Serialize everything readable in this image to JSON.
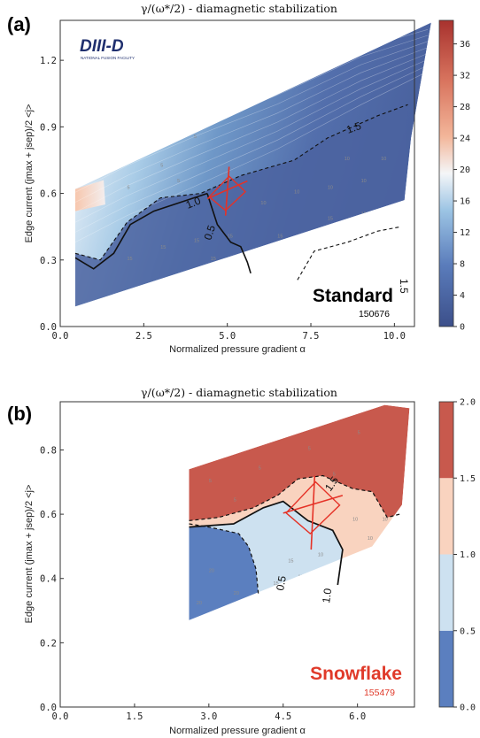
{
  "figure": {
    "panels": [
      {
        "id": "a",
        "label": "(a)",
        "title": "γ/(ω*/2) - diamagnetic stabilization",
        "xlabel": "Normalized pressure gradient α",
        "ylabel": "Edge current (jmax + jsep)/2 <j>",
        "scenario_label": "Standard",
        "scenario_color": "#000000",
        "shot_number": "150676",
        "shot_color": "#000000",
        "logo_text": "DIII-D",
        "logo_subtitle": "NATIONAL FUSION FACILITY",
        "x_ticks": [
          "0.0",
          "2.5",
          "5.0",
          "7.5",
          "10.0"
        ],
        "y_ticks": [
          "0.0",
          "0.3",
          "0.6",
          "0.9",
          "1.2"
        ],
        "colorbar_ticks": [
          "0",
          "4",
          "8",
          "12",
          "16",
          "20",
          "24",
          "28",
          "32",
          "36"
        ],
        "contour_labels": [
          "1.0",
          "0.5",
          "1.5",
          "1.5"
        ],
        "field_samples": [
          "5",
          "10",
          "15"
        ]
      },
      {
        "id": "b",
        "label": "(b)",
        "title": "γ/(ω*/2) - diamagnetic stabilization",
        "xlabel": "Normalized pressure gradient α",
        "ylabel": "Edge current (jmax + jsep)/2 <j>",
        "scenario_label": "Snowflake",
        "scenario_color": "#e03a2a",
        "shot_number": "155479",
        "shot_color": "#e03a2a",
        "x_ticks": [
          "0.0",
          "1.5",
          "3.0",
          "4.5",
          "6.0"
        ],
        "y_ticks": [
          "0.0",
          "0.2",
          "0.4",
          "0.6",
          "0.8"
        ],
        "colorbar_ticks": [
          "0.0",
          "0.5",
          "1.0",
          "1.5",
          "2.0"
        ],
        "contour_labels": [
          "0.5",
          "1.0",
          "1.5"
        ],
        "field_samples": [
          "5",
          "10",
          "15",
          "20"
        ]
      }
    ]
  },
  "chart_data": [
    {
      "type": "heatmap",
      "panel": "a",
      "title": "γ/(ω*/2) - diamagnetic stabilization",
      "xlabel": "Normalized pressure gradient α",
      "ylabel": "Edge current (jmax + jsep)/2 <j>",
      "xlim": [
        0,
        10.6
      ],
      "ylim": [
        0,
        1.38
      ],
      "x_ticks": [
        0.0,
        2.5,
        5.0,
        7.5,
        10.0
      ],
      "y_ticks": [
        0.0,
        0.3,
        0.6,
        0.9,
        1.2
      ],
      "colorbar": {
        "min": 0,
        "max": 39,
        "ticks": [
          0,
          4,
          8,
          12,
          16,
          20,
          24,
          28,
          32,
          36
        ],
        "colormap": "diverging blue-white-red",
        "position": "right"
      },
      "domain_polygon": [
        [
          0.45,
          0.09
        ],
        [
          10.3,
          0.57
        ],
        [
          10.5,
          0.85
        ],
        [
          11.1,
          1.37
        ],
        [
          0.45,
          0.62
        ]
      ],
      "contours": [
        {
          "level": 1.0,
          "style": "solid",
          "points": [
            [
              0.45,
              0.31
            ],
            [
              1.0,
              0.26
            ],
            [
              1.6,
              0.33
            ],
            [
              2.1,
              0.46
            ],
            [
              2.8,
              0.52
            ],
            [
              3.8,
              0.57
            ],
            [
              4.4,
              0.6
            ]
          ]
        },
        {
          "level": 1.5,
          "style": "dashed",
          "points": [
            [
              0.45,
              0.33
            ],
            [
              1.2,
              0.3
            ],
            [
              2.0,
              0.47
            ],
            [
              3.0,
              0.58
            ],
            [
              4.2,
              0.6
            ],
            [
              5.4,
              0.68
            ],
            [
              7.0,
              0.75
            ],
            [
              8.0,
              0.85
            ],
            [
              9.5,
              0.95
            ],
            [
              10.4,
              1.0
            ]
          ]
        },
        {
          "level": 0.5,
          "style": "solid",
          "points": [
            [
              4.4,
              0.6
            ],
            [
              4.7,
              0.46
            ],
            [
              5.1,
              0.38
            ],
            [
              5.4,
              0.36
            ],
            [
              5.6,
              0.29
            ],
            [
              5.7,
              0.24
            ]
          ]
        },
        {
          "level": 1.5,
          "style": "dashed",
          "points": [
            [
              7.1,
              0.21
            ],
            [
              7.6,
              0.34
            ],
            [
              8.6,
              0.38
            ],
            [
              9.5,
              0.43
            ],
            [
              10.2,
              0.45
            ]
          ]
        }
      ],
      "experimental_point": {
        "x": 5.0,
        "y": 0.6,
        "x_err": [
          4.4,
          5.6
        ],
        "y_err": [
          0.5,
          0.72
        ]
      },
      "field_values": [
        {
          "x": 1.0,
          "y": 0.8,
          "v": 5
        },
        {
          "x": 1.5,
          "y": 0.7,
          "v": 5
        },
        {
          "x": 2.0,
          "y": 0.62,
          "v": 5
        },
        {
          "x": 3.0,
          "y": 0.72,
          "v": 5
        },
        {
          "x": 4.0,
          "y": 0.85,
          "v": 5
        },
        {
          "x": 3.5,
          "y": 0.65,
          "v": 5
        },
        {
          "x": 6.0,
          "y": 0.55,
          "v": 10
        },
        {
          "x": 7.0,
          "y": 0.6,
          "v": 10
        },
        {
          "x": 8.0,
          "y": 0.62,
          "v": 10
        },
        {
          "x": 9.0,
          "y": 0.65,
          "v": 10
        },
        {
          "x": 9.6,
          "y": 0.75,
          "v": 10
        },
        {
          "x": 8.5,
          "y": 0.75,
          "v": 10
        },
        {
          "x": 3.0,
          "y": 0.35,
          "v": 15
        },
        {
          "x": 4.0,
          "y": 0.38,
          "v": 15
        },
        {
          "x": 5.0,
          "y": 0.4,
          "v": 15
        },
        {
          "x": 6.5,
          "y": 0.4,
          "v": 15
        },
        {
          "x": 8.0,
          "y": 0.48,
          "v": 15
        },
        {
          "x": 9.0,
          "y": 0.5,
          "v": 15
        },
        {
          "x": 2.0,
          "y": 0.3,
          "v": 15
        },
        {
          "x": 6.0,
          "y": 0.28,
          "v": 15
        },
        {
          "x": 4.5,
          "y": 0.3,
          "v": 15
        }
      ]
    },
    {
      "type": "heatmap",
      "panel": "b",
      "title": "γ/(ω*/2) - diamagnetic stabilization",
      "xlabel": "Normalized pressure gradient α",
      "ylabel": "Edge current (jmax + jsep)/2 <j>",
      "xlim": [
        0,
        7.15
      ],
      "ylim": [
        0,
        0.95
      ],
      "x_ticks": [
        0.0,
        1.5,
        3.0,
        4.5,
        6.0
      ],
      "y_ticks": [
        0.0,
        0.2,
        0.4,
        0.6,
        0.8
      ],
      "colorbar": {
        "min": 0.0,
        "max": 2.0,
        "ticks": [
          0.0,
          0.5,
          1.0,
          1.5,
          2.0
        ],
        "levels": [
          [
            0.0,
            0.5,
            "#5b7fbf"
          ],
          [
            0.5,
            1.0,
            "#cde1f0"
          ],
          [
            1.0,
            1.5,
            "#f9d3bf"
          ],
          [
            1.5,
            2.0,
            "#c8594d"
          ]
        ],
        "position": "right"
      },
      "domain_polygon": [
        [
          2.6,
          0.27
        ],
        [
          6.3,
          0.5
        ],
        [
          6.9,
          0.63
        ],
        [
          7.05,
          0.93
        ],
        [
          6.55,
          0.94
        ],
        [
          2.6,
          0.74
        ]
      ],
      "contours": [
        {
          "level": 0.5,
          "style": "dashed",
          "points": [
            [
              2.6,
              0.57
            ],
            [
              3.0,
              0.56
            ],
            [
              3.6,
              0.54
            ],
            [
              3.8,
              0.5
            ],
            [
              3.95,
              0.43
            ],
            [
              4.0,
              0.35
            ]
          ]
        },
        {
          "level": 1.0,
          "style": "solid",
          "points": [
            [
              2.6,
              0.56
            ],
            [
              3.5,
              0.57
            ],
            [
              4.1,
              0.62
            ],
            [
              4.5,
              0.64
            ],
            [
              5.0,
              0.58
            ],
            [
              5.5,
              0.55
            ],
            [
              5.7,
              0.49
            ],
            [
              5.6,
              0.38
            ]
          ]
        },
        {
          "level": 1.5,
          "style": "dashed",
          "points": [
            [
              2.6,
              0.58
            ],
            [
              3.2,
              0.59
            ],
            [
              3.9,
              0.62
            ],
            [
              4.4,
              0.66
            ],
            [
              4.8,
              0.71
            ],
            [
              5.3,
              0.72
            ],
            [
              5.9,
              0.68
            ],
            [
              6.3,
              0.67
            ],
            [
              6.6,
              0.59
            ],
            [
              6.85,
              0.6
            ]
          ]
        }
      ],
      "experimental_point": {
        "x": 5.1,
        "y": 0.62,
        "x_err": [
          4.5,
          5.7
        ],
        "y_err": [
          0.49,
          0.72
        ]
      },
      "field_values": [
        {
          "x": 3.0,
          "y": 0.7,
          "v": 5
        },
        {
          "x": 4.0,
          "y": 0.74,
          "v": 5
        },
        {
          "x": 5.0,
          "y": 0.8,
          "v": 5
        },
        {
          "x": 6.0,
          "y": 0.85,
          "v": 5
        },
        {
          "x": 3.5,
          "y": 0.64,
          "v": 5
        },
        {
          "x": 5.5,
          "y": 0.72,
          "v": 5
        },
        {
          "x": 5.9,
          "y": 0.58,
          "v": 10
        },
        {
          "x": 6.2,
          "y": 0.52,
          "v": 10
        },
        {
          "x": 6.5,
          "y": 0.58,
          "v": 10
        },
        {
          "x": 5.2,
          "y": 0.47,
          "v": 10
        },
        {
          "x": 4.6,
          "y": 0.45,
          "v": 15
        },
        {
          "x": 4.3,
          "y": 0.38,
          "v": 15
        },
        {
          "x": 4.8,
          "y": 0.4,
          "v": 15
        },
        {
          "x": 3.0,
          "y": 0.42,
          "v": 20
        },
        {
          "x": 3.5,
          "y": 0.35,
          "v": 20
        },
        {
          "x": 2.75,
          "y": 0.32,
          "v": 20
        }
      ]
    }
  ]
}
